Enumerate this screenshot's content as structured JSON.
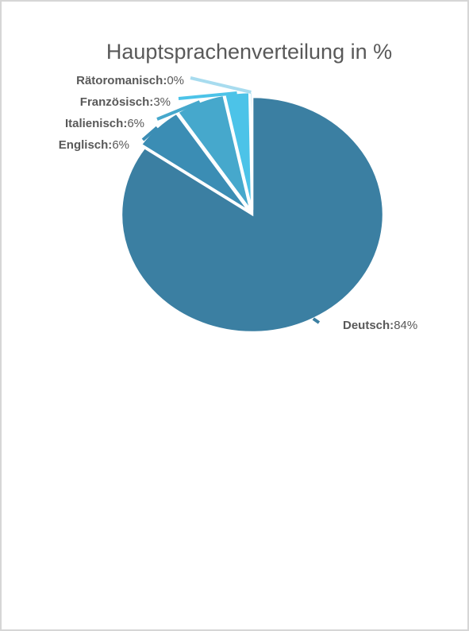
{
  "chart_data": {
    "type": "pie",
    "title": "Hauptsprachenverteilung in %",
    "exploded_start_angle_deg": 0,
    "slices": [
      {
        "label": "Deutsch",
        "value_text": "84%",
        "value": 84,
        "color": "#3b7fa2"
      },
      {
        "label": "Englisch",
        "value_text": "6%",
        "value": 6,
        "color": "#3b8db4"
      },
      {
        "label": "Italienisch",
        "value_text": "6%",
        "value": 6,
        "color": "#46a8cc"
      },
      {
        "label": "Französisch",
        "value_text": "3%",
        "value": 3,
        "color": "#4cc3e8"
      },
      {
        "label": "Rätoromanisch",
        "value_text": "0%",
        "value": 0.3,
        "color": "#a8dcef"
      }
    ],
    "legend": "none",
    "data_labels": "outside-with-leader-lines"
  }
}
